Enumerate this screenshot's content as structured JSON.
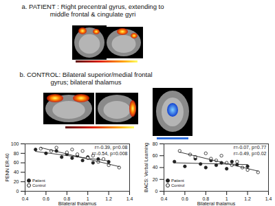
{
  "panels": [
    {
      "lines": [
        "a. PATIENT : Right precentral gyrus, extending to",
        "middle frontal & cingulate gyri"
      ]
    },
    {
      "lines": [
        "b. CONTROL:  Bilateral superior/medial frontal",
        "gyrus; bilateral thalamus"
      ]
    }
  ],
  "chart_data": [
    {
      "type": "scatter",
      "x_label": "Bilateral thalamus",
      "y_label": "PENN ER-40",
      "xlim": [
        0.4,
        1.4
      ],
      "xticks": [
        0.4,
        0.6,
        0.8,
        1,
        1.2,
        1.4
      ],
      "ylim": [
        0,
        100
      ],
      "yticks": [
        0,
        20,
        40,
        60,
        80,
        100
      ],
      "grid": false,
      "legend": "bottom-left",
      "annotations": [
        "r=-0.39, p=0.08",
        "r=-0.54, p=0.008"
      ],
      "series": [
        {
          "name": "Patient",
          "color": "#222222",
          "marker": "circle",
          "x": [
            0.5,
            0.6,
            0.7,
            0.75,
            0.8,
            0.85,
            0.9,
            0.95,
            1.0,
            1.05,
            1.1,
            1.2
          ],
          "values": [
            88,
            80,
            85,
            72,
            78,
            70,
            75,
            65,
            72,
            60,
            68,
            62
          ],
          "trend": {
            "x": [
              0.5,
              1.2
            ],
            "y": [
              84,
              64
            ]
          }
        },
        {
          "name": "Control",
          "color": "#222222",
          "marker": "open_circle",
          "x": [
            0.55,
            0.65,
            0.7,
            0.8,
            0.85,
            0.9,
            0.95,
            1.0,
            1.05,
            1.1,
            1.15,
            1.2,
            1.3
          ],
          "values": [
            90,
            85,
            92,
            82,
            88,
            78,
            85,
            70,
            75,
            62,
            68,
            55,
            50
          ],
          "trend": {
            "x": [
              0.55,
              1.3
            ],
            "y": [
              92,
              52
            ]
          }
        }
      ]
    },
    {
      "type": "scatter",
      "x_label": "Bilateral thalamus",
      "y_label": "BACS: Verbal Learning",
      "xlim": [
        0.4,
        1.4
      ],
      "xticks": [
        0.4,
        0.6,
        0.8,
        1,
        1.2,
        1.4
      ],
      "ylim": [
        0,
        80
      ],
      "yticks": [
        0,
        20,
        40,
        60,
        80
      ],
      "grid": false,
      "legend": "bottom-left",
      "annotations": [
        "r=-0.07, p=0.77",
        "r=-0.49, p=0.02"
      ],
      "series": [
        {
          "name": "Patient",
          "color": "#222222",
          "marker": "circle",
          "x": [
            0.5,
            0.6,
            0.7,
            0.75,
            0.8,
            0.85,
            0.9,
            0.95,
            1.0,
            1.05,
            1.1,
            1.2
          ],
          "values": [
            50,
            42,
            55,
            46,
            40,
            52,
            44,
            48,
            38,
            50,
            45,
            42
          ],
          "trend": {
            "x": [
              0.5,
              1.2
            ],
            "y": [
              48,
              45
            ]
          }
        },
        {
          "name": "Control",
          "color": "#222222",
          "marker": "open_circle",
          "x": [
            0.55,
            0.65,
            0.7,
            0.8,
            0.85,
            0.9,
            0.95,
            1.0,
            1.05,
            1.1,
            1.15,
            1.2,
            1.3
          ],
          "values": [
            68,
            62,
            58,
            64,
            55,
            52,
            60,
            48,
            44,
            50,
            40,
            36,
            32
          ],
          "trend": {
            "x": [
              0.55,
              1.3
            ],
            "y": [
              66,
              34
            ]
          }
        }
      ]
    }
  ]
}
